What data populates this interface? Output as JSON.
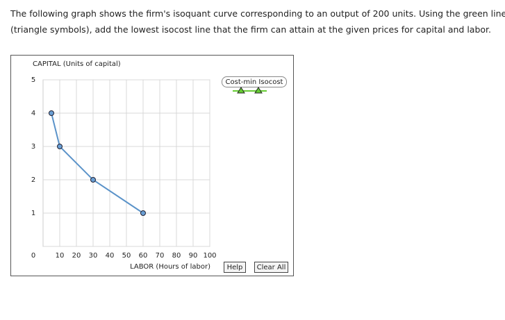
{
  "question": {
    "line1": "The following graph shows the firm's isoquant curve corresponding to an output of 200 units. Using the green line",
    "line2": "(triangle symbols), add the lowest isocost line that the firm can attain at the given prices for capital and labor."
  },
  "chart_data": {
    "type": "line",
    "ylabel": "CAPITAL (Units of capital)",
    "xlabel": "LABOR (Hours of labor)",
    "x": [
      5,
      10,
      30,
      60
    ],
    "values": [
      4,
      3,
      2,
      1
    ],
    "color": "#5b93c9",
    "marker_color": "#6a9fd4",
    "xlim": [
      0,
      100
    ],
    "ylim": [
      0,
      5
    ],
    "xticks": [
      10,
      20,
      30,
      40,
      50,
      60,
      70,
      80,
      90,
      100
    ],
    "yticks": [
      0,
      1,
      2,
      3,
      4,
      5
    ],
    "grid": true,
    "isocost_tool": {
      "label": "Cost-min Isocost",
      "color": "#66cc33"
    }
  },
  "buttons": {
    "help": "Help",
    "clear": "Clear All"
  }
}
